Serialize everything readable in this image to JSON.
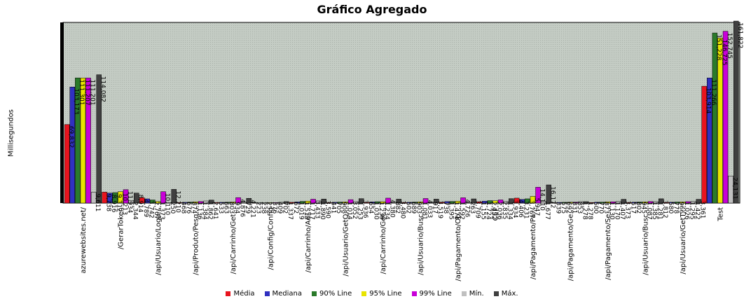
{
  "chart_data": {
    "type": "bar",
    "title": "Gráfico Agregado",
    "ylabel": "Millisegundos",
    "xlabel": "",
    "ylim": [
      0,
      160000
    ],
    "grid": true,
    "legend_position": "bottom",
    "categories": [
      "azurewebsites.net/",
      "/GerarToken",
      "/api/Usuario/Loga...",
      "/api/Produto/Pesq...",
      "/api/Carrinho/Get...",
      "/api/Config/Config",
      "/api/Carrinho/Adi...",
      "/api/Usuario/GetQ...",
      "/api/Carrinho/Get...",
      "/api/Usuario/Busc...",
      "/api/Pagamento/Ob...",
      "CEP",
      "/api/Pagamento/Pa...",
      "/api/Pagamento/Ge...",
      "/api/Pagamento/Se...",
      "/api/Usuario/Busc...",
      "/api/Usuario/GetT...",
      "Test"
    ],
    "series": [
      {
        "name": "Média",
        "color": "#e8141e",
        "values": [
          69832,
          9738,
          4789,
          468,
          533,
          223,
          672,
          441,
          654,
          502,
          738,
          1155,
          4406,
          339,
          500,
          517,
          580,
          103914
        ]
      },
      {
        "name": "Mediana",
        "color": "#3030c0",
        "values": [
          103173,
          8916,
          3742,
          676,
          663,
          238,
          1019,
          705,
          1030,
          689,
          1395,
          1724,
          3231,
          575,
          770,
          802,
          778,
          111266
        ]
      },
      {
        "name": "90% Line",
        "color": "#2a7a2a",
        "values": [
          111301,
          9312,
          2767,
          874,
          803,
          252,
          1513,
          908,
          1239,
          903,
          1474,
          2152,
          3767,
          692,
          873,
          945,
          966,
          151228
        ]
      },
      {
        "name": "95% Line",
        "color": "#e8e400",
        "values": [
          111207,
          10213,
          1373,
          1136,
          934,
          376,
          1717,
          1014,
          1234,
          1081,
          1592,
          2036,
          5947,
          831,
          1130,
          1087,
          1026,
          146725
        ]
      },
      {
        "name": "99% Line",
        "color": "#c800d8",
        "values": [
          111201,
          11934,
          10110,
          1384,
          4876,
          409,
          3433,
          3052,
          4380,
          4033,
          4726,
          2835,
          14110,
          853,
          1170,
          1385,
          1295,
          152745
        ]
      },
      {
        "name": "Mín.",
        "color": "#c0c0c0",
        "values": [
          9611,
          2344,
          250,
          1862,
          729,
          702,
          1890,
          1253,
          882,
          917,
          263,
          1334,
          1677,
          1278,
          1407,
          1281,
          1422,
          24131
        ]
      },
      {
        "name": "Máx.",
        "color": "#404040",
        "values": [
          114082,
          8914,
          12210,
          2641,
          4221,
          1337,
          3590,
          3936,
          3480,
          3519,
          3709,
          3934,
          16172,
          1278,
          3373,
          3812,
          3361,
          161822
        ]
      }
    ]
  }
}
